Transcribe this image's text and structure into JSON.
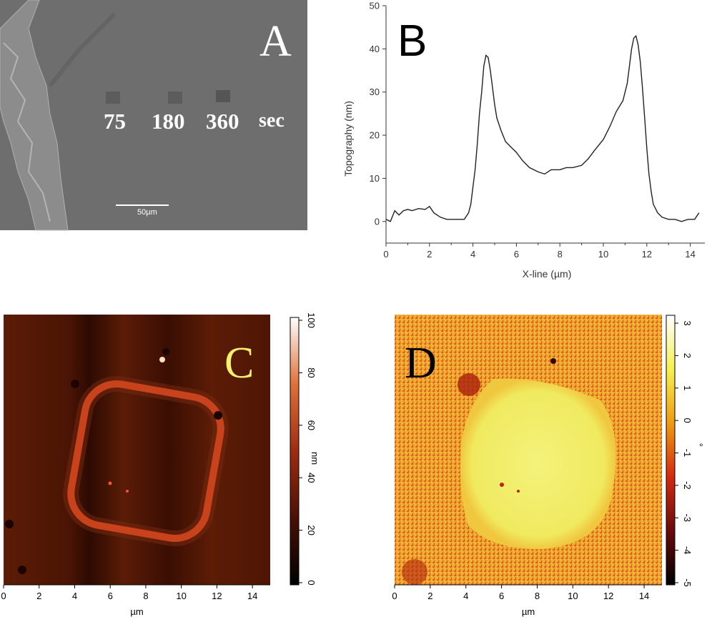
{
  "panels": {
    "a": {
      "letter": "A",
      "exposure_labels": [
        "75",
        "180",
        "360"
      ],
      "unit": "sec",
      "scale_bar": "50µm"
    },
    "b": {
      "letter": "B"
    },
    "c": {
      "letter": "C",
      "colorbar_label": "nm",
      "colorbar_ticks": [
        "0",
        "20",
        "40",
        "60",
        "80",
        "100"
      ]
    },
    "d": {
      "letter": "D",
      "colorbar_label": "°",
      "colorbar_ticks": [
        "-5",
        "-4",
        "-3",
        "-2",
        "-1",
        "0",
        "1",
        "2",
        "3"
      ]
    }
  },
  "colors": {
    "line": "#222222",
    "axis": "#333333",
    "sem_bg": "#6f6f6f",
    "afm_bg": "#5a1905",
    "afm_ring": "#c8401a",
    "phase_bg": "#e8a020",
    "phase_center": "#f2f06a"
  },
  "chart_data": [
    {
      "type": "line",
      "panel": "B",
      "xlabel": "X-line (µm)",
      "ylabel": "Topography (nm)",
      "xlim": [
        0,
        15
      ],
      "ylim": [
        -5,
        50
      ],
      "xticks": [
        0,
        2,
        4,
        6,
        8,
        10,
        12,
        14
      ],
      "yticks": [
        0,
        10,
        20,
        30,
        40,
        50
      ],
      "x": [
        0,
        0.2,
        0.4,
        0.6,
        0.8,
        1.0,
        1.2,
        1.5,
        1.8,
        2.0,
        2.2,
        2.5,
        2.8,
        3.0,
        3.3,
        3.6,
        3.8,
        3.9,
        4.0,
        4.1,
        4.2,
        4.3,
        4.4,
        4.5,
        4.6,
        4.7,
        4.8,
        4.9,
        5.0,
        5.1,
        5.3,
        5.5,
        5.8,
        6.0,
        6.3,
        6.6,
        7.0,
        7.3,
        7.6,
        8.0,
        8.3,
        8.6,
        9.0,
        9.3,
        9.6,
        10.0,
        10.3,
        10.6,
        10.9,
        11.1,
        11.2,
        11.3,
        11.4,
        11.5,
        11.6,
        11.7,
        11.8,
        11.9,
        12.0,
        12.1,
        12.2,
        12.3,
        12.5,
        12.7,
        13.0,
        13.3,
        13.6,
        13.9,
        14.2,
        14.4
      ],
      "y": [
        0.5,
        0.0,
        2.5,
        1.5,
        2.5,
        2.8,
        2.5,
        3.0,
        2.8,
        3.5,
        2.0,
        1.0,
        0.5,
        0.5,
        0.5,
        0.5,
        2.0,
        4.0,
        8.0,
        12.0,
        18.0,
        25.0,
        30.0,
        36.0,
        38.5,
        38.0,
        35.0,
        31.0,
        27.0,
        24.0,
        21.0,
        18.5,
        17.0,
        16.0,
        14.0,
        12.5,
        11.5,
        11.0,
        12.0,
        12.0,
        12.5,
        12.5,
        13.0,
        14.5,
        16.5,
        19.0,
        22.0,
        25.5,
        28.0,
        32.0,
        36.0,
        40.0,
        42.5,
        43.0,
        41.0,
        37.0,
        31.0,
        24.0,
        17.0,
        11.0,
        7.0,
        4.0,
        2.0,
        1.0,
        0.5,
        0.5,
        0.0,
        0.5,
        0.5,
        2.0
      ]
    },
    {
      "type": "heatmap",
      "panel": "C",
      "xlabel": "µm",
      "xticks": [
        0,
        2,
        4,
        6,
        8,
        10,
        12,
        14
      ],
      "colorbar_range": [
        0,
        100
      ],
      "colorbar_unit": "nm"
    },
    {
      "type": "heatmap",
      "panel": "D",
      "xlabel": "µm",
      "xticks": [
        0,
        2,
        4,
        6,
        8,
        10,
        12,
        14
      ],
      "colorbar_range": [
        -5,
        3
      ],
      "colorbar_unit": "°"
    }
  ]
}
